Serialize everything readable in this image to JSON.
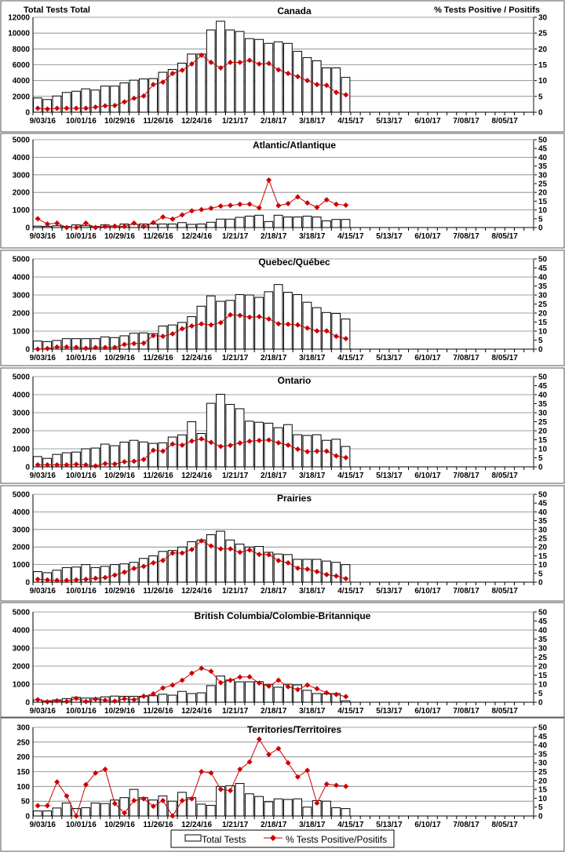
{
  "weeks": [
    "9/03/16",
    "10/01/16",
    "10/29/16",
    "11/26/16",
    "12/24/16",
    "1/21/17",
    "2/18/17",
    "3/18/17",
    "4/15/17",
    "5/13/17",
    "6/10/17",
    "7/08/17",
    "8/05/17"
  ],
  "total_weeks": 52,
  "left_axis_title": "Total Tests  Total",
  "right_axis_title": "% Tests  Positive / Positifs",
  "legend": {
    "bars": "Total Tests",
    "line": "% Tests Positive/Positifs"
  },
  "colors": {
    "line": "#cc0000",
    "bar_fill": "#ffffff",
    "bar_stroke": "#000000",
    "grid": "#808080"
  },
  "chart_data": [
    {
      "type": "bar+line",
      "title": "Canada",
      "ylim": [
        0,
        12000
      ],
      "ystep": 2000,
      "y2lim": [
        0,
        30
      ],
      "y2step": 5,
      "bars": [
        1800,
        1600,
        2050,
        2500,
        2650,
        2950,
        2800,
        3300,
        3300,
        3700,
        4050,
        4200,
        4250,
        5050,
        5400,
        6200,
        7350,
        7350,
        10400,
        11500,
        10400,
        10200,
        9300,
        9200,
        8700,
        8900,
        8700,
        7700,
        6900,
        6500,
        5600,
        5600,
        4400
      ],
      "pct": [
        1.25,
        1,
        1.25,
        1.25,
        1.25,
        1.25,
        1.6,
        2,
        2.1,
        3.25,
        4.4,
        5.1,
        8.75,
        9.5,
        12.25,
        13.25,
        15.25,
        18,
        15.75,
        14,
        15.75,
        15.75,
        16.4,
        15.25,
        15.4,
        13.4,
        12.25,
        11.25,
        10,
        8.75,
        8.5,
        6.25,
        5.5
      ]
    },
    {
      "type": "bar+line",
      "title": "Atlantic/Atlantique",
      "ylim": [
        0,
        5000
      ],
      "ystep": 1000,
      "y2lim": [
        0,
        50
      ],
      "y2step": 5,
      "bars": [
        80,
        70,
        100,
        60,
        150,
        100,
        60,
        150,
        90,
        200,
        180,
        200,
        200,
        200,
        200,
        280,
        180,
        200,
        300,
        480,
        480,
        580,
        650,
        700,
        340,
        700,
        600,
        600,
        650,
        600,
        380,
        460,
        460
      ],
      "pct": [
        5,
        2,
        2.5,
        0,
        0,
        2.5,
        0,
        0.6,
        0.8,
        0.6,
        2.5,
        0.5,
        2.8,
        6,
        4.8,
        7.2,
        9.5,
        10.2,
        11,
        12.2,
        12.6,
        13.2,
        13.3,
        11.2,
        27,
        12.5,
        13.6,
        17.4,
        14,
        11.5,
        15.8,
        13.2,
        12.7
      ]
    },
    {
      "type": "bar+line",
      "title": "Quebec/Québec",
      "ylim": [
        0,
        5000
      ],
      "ystep": 1000,
      "y2lim": [
        0,
        50
      ],
      "y2step": 5,
      "bars": [
        450,
        420,
        480,
        580,
        580,
        580,
        580,
        680,
        640,
        740,
        880,
        900,
        860,
        1280,
        1340,
        1480,
        1800,
        2380,
        2950,
        2650,
        2700,
        3020,
        3000,
        2870,
        3180,
        3580,
        3150,
        3020,
        2600,
        2300,
        2030,
        1980,
        1670
      ],
      "pct": [
        0,
        0.3,
        1.2,
        1.2,
        1,
        0.5,
        0.9,
        0.9,
        0.9,
        2.6,
        3.1,
        3.3,
        7.5,
        7.1,
        8.5,
        11.3,
        12.8,
        14,
        13.4,
        14.7,
        19,
        18.7,
        17.7,
        18,
        16.7,
        14.1,
        13.8,
        13.4,
        11.7,
        10.1,
        10.1,
        7.1,
        5.8
      ]
    },
    {
      "type": "bar+line",
      "title": "Ontario",
      "ylim": [
        0,
        5000
      ],
      "ystep": 1000,
      "y2lim": [
        0,
        50
      ],
      "y2step": 5,
      "bars": [
        570,
        470,
        690,
        780,
        820,
        1000,
        1040,
        1260,
        1170,
        1370,
        1470,
        1380,
        1300,
        1330,
        1650,
        1770,
        2500,
        1850,
        3520,
        4020,
        3460,
        3220,
        2530,
        2470,
        2420,
        2170,
        2340,
        1780,
        1740,
        1780,
        1470,
        1530,
        1130
      ],
      "pct": [
        1.1,
        1.1,
        1.1,
        1.1,
        1.4,
        1.1,
        0.5,
        1.8,
        1.6,
        2.8,
        3.1,
        4.1,
        9.2,
        8.7,
        12.6,
        12,
        14.3,
        15.5,
        13.6,
        11.3,
        11.9,
        13.2,
        14.2,
        14.6,
        14.9,
        13.3,
        12,
        9.8,
        8.4,
        8.7,
        8.7,
        6.1,
        5.1
      ]
    },
    {
      "type": "bar+line",
      "title": "Prairies",
      "ylim": [
        0,
        5000
      ],
      "ystep": 1000,
      "y2lim": [
        0,
        50
      ],
      "y2step": 5,
      "bars": [
        600,
        540,
        680,
        830,
        860,
        1000,
        830,
        900,
        1000,
        1040,
        1130,
        1350,
        1500,
        1750,
        1800,
        2000,
        2300,
        2400,
        2700,
        2900,
        2400,
        2170,
        2000,
        2030,
        1700,
        1600,
        1570,
        1300,
        1300,
        1300,
        1200,
        1130,
        1000
      ],
      "pct": [
        1.6,
        1.3,
        1,
        1,
        1.3,
        1.6,
        2.2,
        2.6,
        4,
        5.7,
        7.8,
        9,
        11,
        12.4,
        16.6,
        16.6,
        18.6,
        23.5,
        20.6,
        19,
        19,
        17,
        18.3,
        15.8,
        15.6,
        12.3,
        11,
        8,
        7.4,
        6,
        4.3,
        3.5,
        2
      ]
    },
    {
      "type": "bar+line",
      "title": "British Columbia/Colombie-Britannique",
      "ylim": [
        0,
        5000
      ],
      "ystep": 1000,
      "y2lim": [
        0,
        50
      ],
      "y2step": 5,
      "bars": [
        130,
        80,
        130,
        200,
        270,
        230,
        230,
        300,
        340,
        330,
        330,
        330,
        360,
        440,
        390,
        600,
        480,
        520,
        920,
        1450,
        1230,
        1130,
        1130,
        1140,
        990,
        830,
        1000,
        960,
        660,
        480,
        460,
        480,
        80
      ],
      "pct": [
        1.4,
        0.2,
        0.8,
        0.4,
        2.1,
        0.4,
        1.7,
        1.1,
        0.6,
        1.9,
        1.4,
        3.3,
        4.6,
        7.9,
        9.5,
        12.2,
        16.1,
        18.8,
        17.1,
        10.8,
        12.2,
        13.9,
        14.1,
        10.6,
        8.9,
        12.2,
        8.6,
        7,
        9.5,
        7.5,
        5.2,
        4.3,
        3.1
      ]
    },
    {
      "type": "bar+line",
      "title": "Territories/Territoires",
      "ylim": [
        0,
        300
      ],
      "ystep": 50,
      "y2lim": [
        0,
        50
      ],
      "y2step": 5,
      "bars": [
        17,
        17,
        27,
        44,
        25,
        28,
        44,
        42,
        54,
        62,
        90,
        62,
        54,
        68,
        50,
        80,
        62,
        40,
        36,
        100,
        102,
        110,
        75,
        66,
        48,
        58,
        56,
        58,
        30,
        52,
        50,
        28,
        25
      ],
      "pct": [
        5.8,
        5.8,
        19.2,
        11.3,
        0,
        17.7,
        24.2,
        26.3,
        7,
        1.7,
        8.7,
        9.7,
        5.5,
        8.7,
        0,
        8.7,
        9.7,
        25,
        24.3,
        15,
        14.3,
        26.3,
        30.5,
        43.3,
        34.7,
        38,
        30,
        22,
        25.7,
        7.3,
        18,
        17.3,
        16.7
      ]
    }
  ]
}
